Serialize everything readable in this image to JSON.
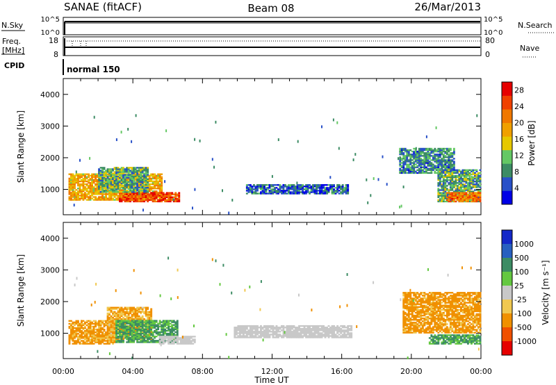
{
  "header": {
    "station": "SANAE (fitACF)",
    "beam": "Beam 08",
    "date": "26/Mar/2013"
  },
  "noise_panel": {
    "left_label": "N.Sky",
    "right_label": "N.Search",
    "left_ticks": [
      "10^5",
      "10^0"
    ],
    "right_ticks": [
      "10^5",
      "10^0"
    ]
  },
  "freq_panel": {
    "left_label_1": "Freq.",
    "left_label_2": "[MHz]",
    "right_label": "Nave",
    "left_ticks": [
      "18",
      "8"
    ],
    "right_ticks": [
      "80",
      "0"
    ]
  },
  "cpid_panel": {
    "label": "CPID",
    "value": "normal 150"
  },
  "colors": {
    "power_scale": [
      "#0000e6",
      "#2850c8",
      "#3c8c64",
      "#64c864",
      "#e6c800",
      "#f0a000",
      "#f07800",
      "#f04000",
      "#e60000"
    ],
    "velocity_scale": [
      "#e60000",
      "#f05000",
      "#f09000",
      "#f0c850",
      "#c8c8c8",
      "#64c840",
      "#3c8c64",
      "#2860c0",
      "#1428c8"
    ]
  },
  "chart_data": [
    {
      "type": "heatmap",
      "name_in_chart": "power",
      "ylabel": "Slant Range [km]",
      "ylim": [
        200,
        4500
      ],
      "y_ticks": [
        "1000",
        "2000",
        "3000",
        "4000"
      ],
      "xlim": [
        0,
        24
      ],
      "colorbar": {
        "label": "Power [dB]",
        "range": [
          0,
          30
        ],
        "tick_labels": [
          "4",
          "8",
          "12",
          "16",
          "20",
          "24",
          "28"
        ]
      },
      "regions": [
        {
          "t0": 0.3,
          "t1": 5.6,
          "r0": 650,
          "r1": 1500,
          "level": 18
        },
        {
          "t0": 3.2,
          "t1": 6.6,
          "r0": 600,
          "r1": 900,
          "level": 25
        },
        {
          "t0": 2.0,
          "t1": 4.8,
          "r0": 900,
          "r1": 1700,
          "level": 10
        },
        {
          "t0": 10.5,
          "t1": 16.3,
          "r0": 850,
          "r1": 1150,
          "level": 6
        },
        {
          "t0": 19.3,
          "t1": 22.5,
          "r0": 1500,
          "r1": 2300,
          "level": 8
        },
        {
          "t0": 21.5,
          "t1": 24.0,
          "r0": 600,
          "r1": 1600,
          "level": 10
        },
        {
          "t0": 22.0,
          "t1": 24.0,
          "r0": 600,
          "r1": 900,
          "level": 22
        }
      ]
    },
    {
      "type": "heatmap",
      "name_in_chart": "velocity",
      "ylabel": "Slant Range [km]",
      "ylim": [
        200,
        4500
      ],
      "y_ticks": [
        "1000",
        "2000",
        "3000",
        "4000"
      ],
      "xlim": [
        0,
        24
      ],
      "colorbar": {
        "label": "Velocity [m s⁻¹]",
        "tick_labels": [
          "1000",
          "500",
          "100",
          "25",
          "-25",
          "-100",
          "-500",
          "-1000"
        ]
      },
      "regions": [
        {
          "t0": 0.3,
          "t1": 3.0,
          "r0": 650,
          "r1": 1400,
          "level": -150
        },
        {
          "t0": 2.5,
          "t1": 5.0,
          "r0": 800,
          "r1": 1800,
          "level": -120
        },
        {
          "t0": 3.0,
          "t1": 6.5,
          "r0": 700,
          "r1": 1400,
          "level": 120
        },
        {
          "t0": 5.5,
          "t1": 7.5,
          "r0": 650,
          "r1": 900,
          "level": 0
        },
        {
          "t0": 9.8,
          "t1": 16.5,
          "r0": 850,
          "r1": 1250,
          "level": 0
        },
        {
          "t0": 19.5,
          "t1": 24.0,
          "r0": 1000,
          "r1": 2300,
          "level": -200
        },
        {
          "t0": 21.0,
          "t1": 24.0,
          "r0": 650,
          "r1": 950,
          "level": 120
        }
      ]
    }
  ],
  "x_axis": {
    "tick_labels": [
      "00:00",
      "04:00",
      "08:00",
      "12:00",
      "16:00",
      "20:00",
      "00:00"
    ],
    "label": "Time UT"
  }
}
